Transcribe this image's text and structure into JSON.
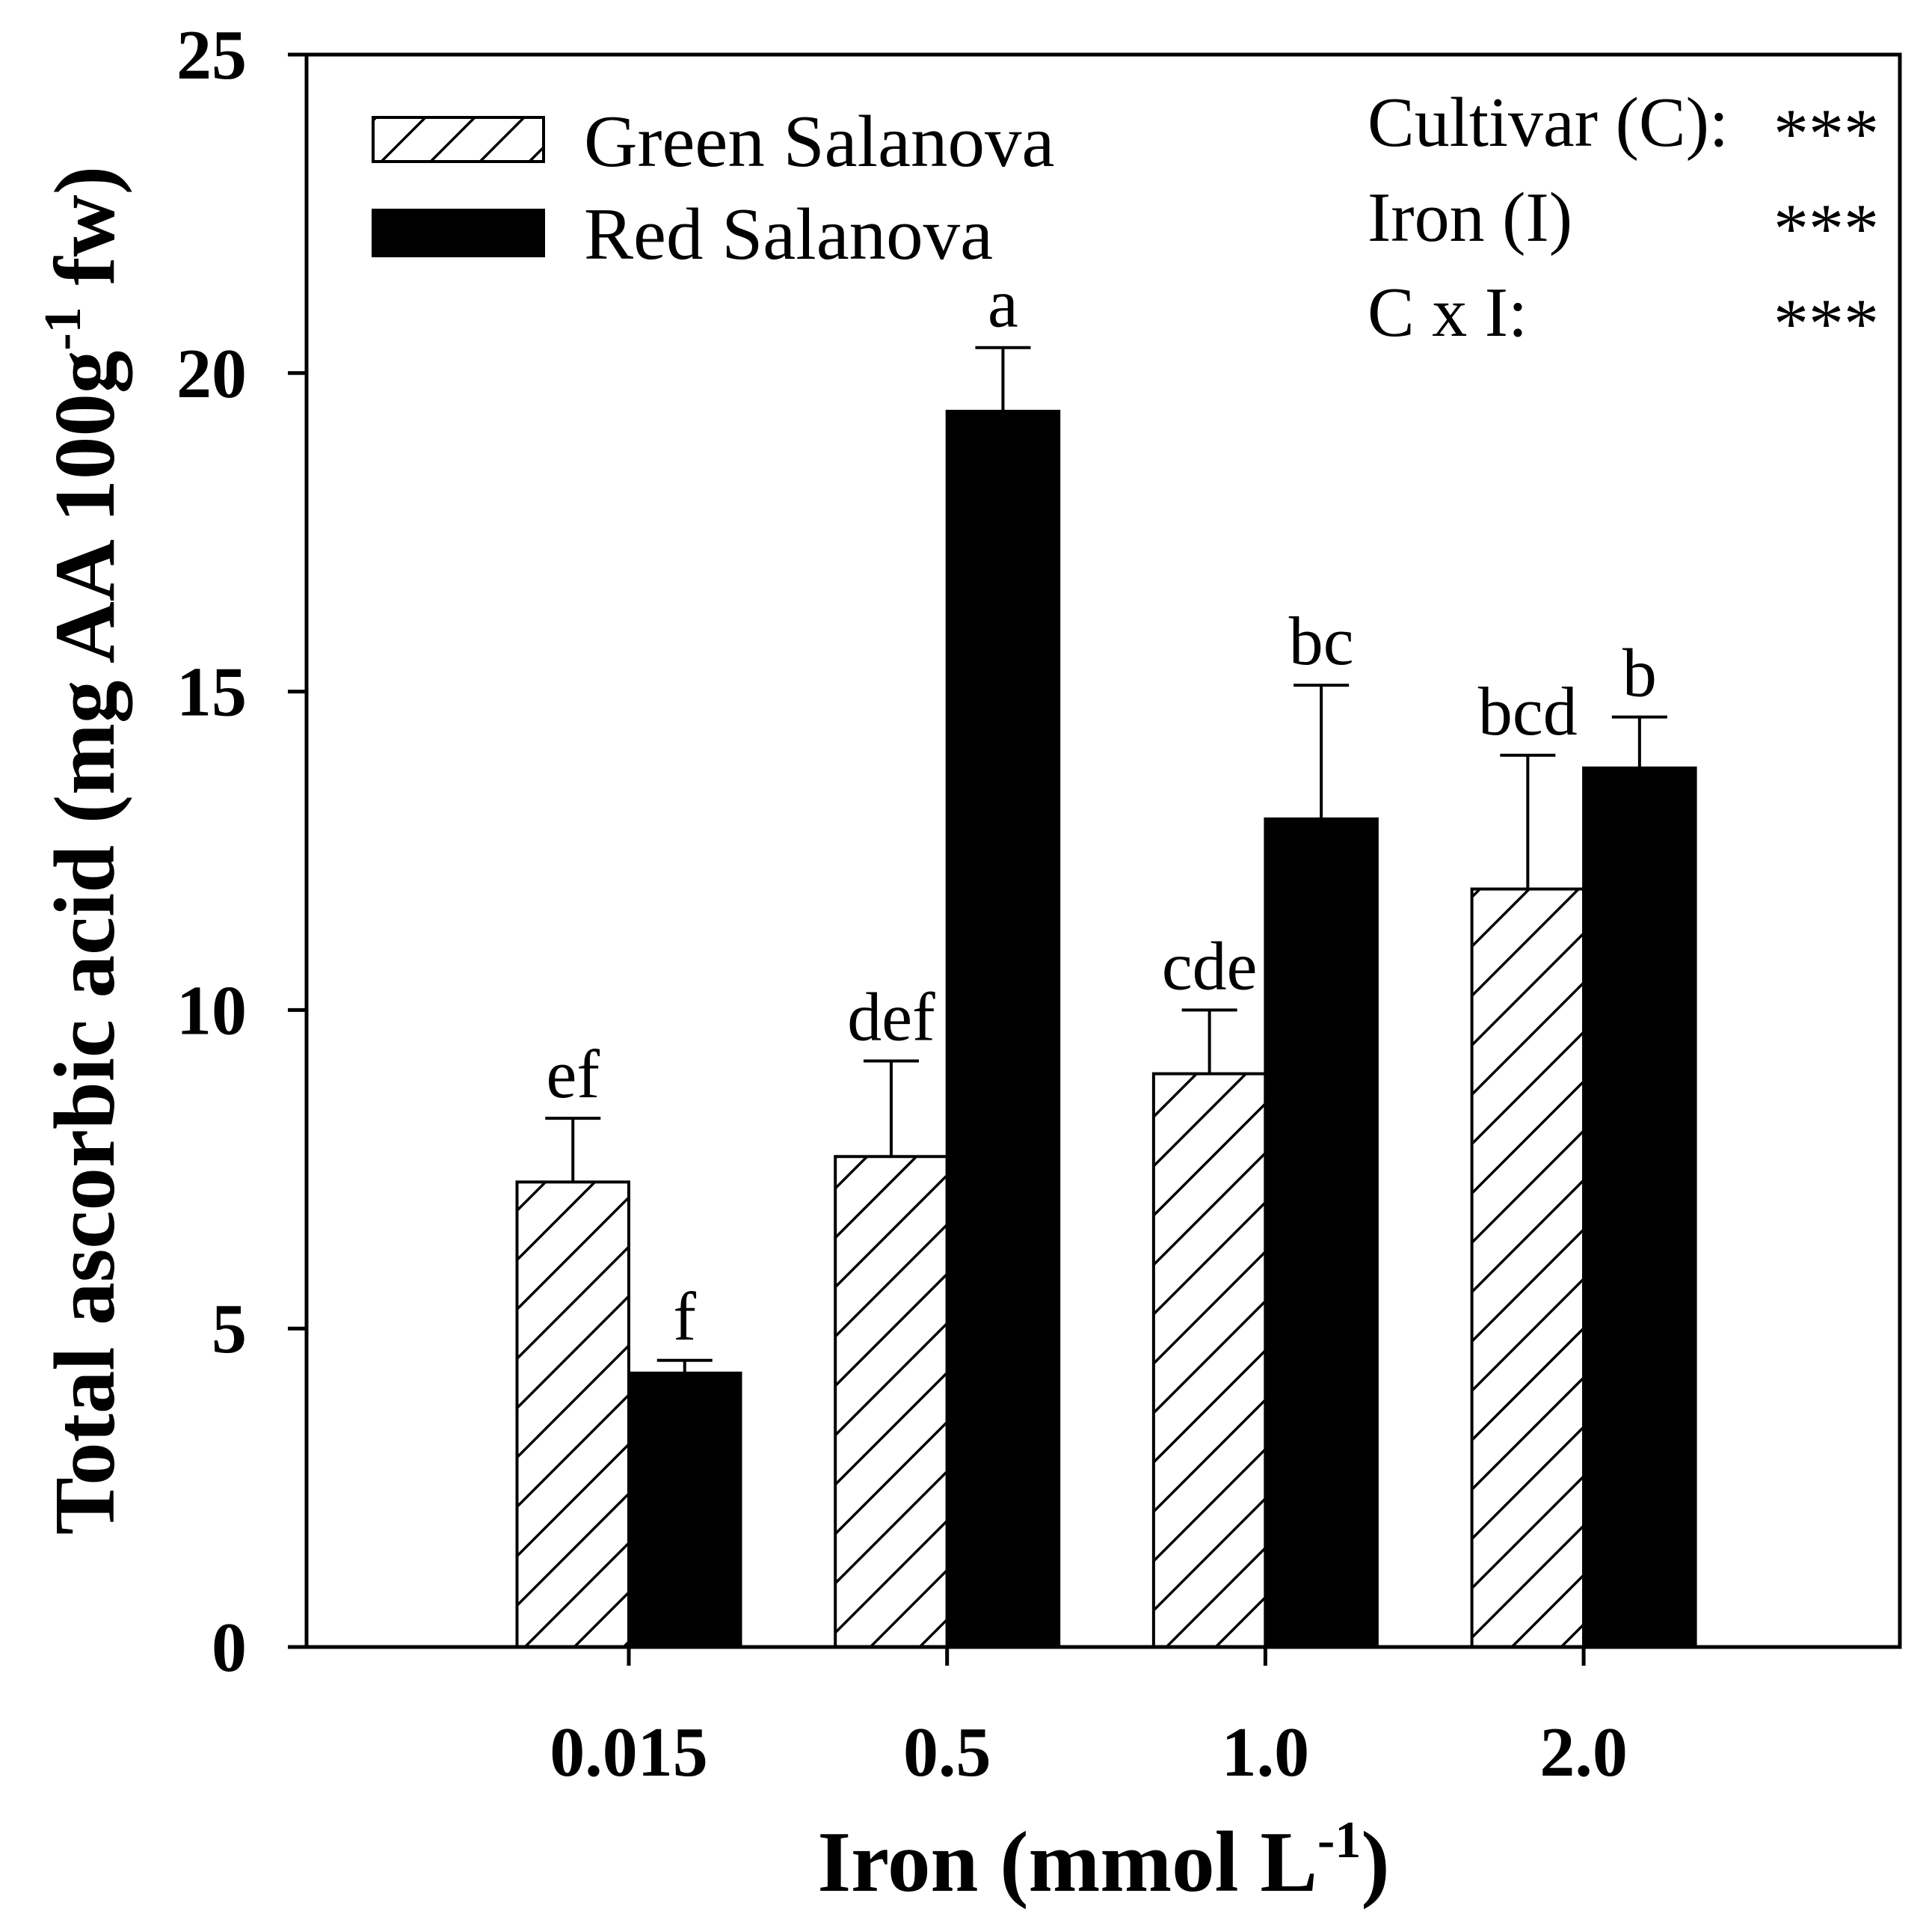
{
  "chart_data": {
    "type": "bar",
    "xlabel": {
      "text": "Iron (mmol L",
      "sup": "-1",
      "end": ")"
    },
    "ylabel": {
      "text": "Total ascorbic acid (mg AA 100g",
      "sup": "-1",
      "end": " fw)"
    },
    "categories": [
      "0.015",
      "0.5",
      "1.0",
      "2.0"
    ],
    "ylim": [
      0,
      25
    ],
    "yticks": [
      0,
      5,
      10,
      15,
      20,
      25
    ],
    "grid": false,
    "series": [
      {
        "name": "Green Salanova",
        "fill": "#ffffff",
        "hatch": true,
        "values": [
          7.3,
          7.7,
          9.0,
          11.9
        ],
        "errors": [
          1.0,
          1.5,
          1.0,
          2.1
        ],
        "letters": [
          "ef",
          "def",
          "cde",
          "bcd"
        ]
      },
      {
        "name": "Red Salanova",
        "fill": "#000000",
        "hatch": false,
        "values": [
          4.3,
          19.4,
          13.0,
          13.8
        ],
        "errors": [
          0.2,
          1.0,
          2.1,
          0.8
        ],
        "letters": [
          "f",
          "a",
          "bc",
          "b"
        ]
      }
    ],
    "annotations": {
      "rows": [
        {
          "label": "Cultivar (C):",
          "significance": "***"
        },
        {
          "label": "Iron (I)",
          "significance": "***"
        },
        {
          "label": "C x I:",
          "significance": "***"
        }
      ]
    }
  },
  "colors": {
    "ink": "#000000",
    "background": "#ffffff"
  }
}
